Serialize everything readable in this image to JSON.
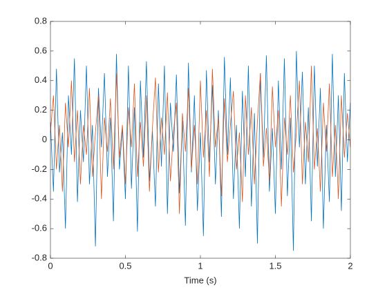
{
  "chart_data": {
    "type": "line",
    "xlabel": "Time (s)",
    "x": [
      0,
      0.02,
      0.04,
      0.06,
      0.08,
      0.1,
      0.12,
      0.14,
      0.16,
      0.18,
      0.2,
      0.22,
      0.24,
      0.26,
      0.28,
      0.3,
      0.32,
      0.34,
      0.36,
      0.38,
      0.4,
      0.42,
      0.44,
      0.46,
      0.48,
      0.5,
      0.52,
      0.54,
      0.56,
      0.58,
      0.6,
      0.62,
      0.64,
      0.66,
      0.68,
      0.7,
      0.72,
      0.74,
      0.76,
      0.78,
      0.8,
      0.82,
      0.84,
      0.86,
      0.88,
      0.9,
      0.92,
      0.94,
      0.96,
      0.98,
      1,
      1.02,
      1.04,
      1.06,
      1.08,
      1.1,
      1.12,
      1.14,
      1.16,
      1.18,
      1.2,
      1.22,
      1.24,
      1.26,
      1.28,
      1.3,
      1.32,
      1.34,
      1.36,
      1.38,
      1.4,
      1.42,
      1.44,
      1.46,
      1.48,
      1.5,
      1.52,
      1.54,
      1.56,
      1.58,
      1.6,
      1.62,
      1.64,
      1.66,
      1.68,
      1.7,
      1.72,
      1.74,
      1.76,
      1.78,
      1.8,
      1.82,
      1.84,
      1.86,
      1.88,
      1.9,
      1.92,
      1.94,
      1.96,
      1.98,
      2
    ],
    "series": [
      {
        "color": "#0072BD",
        "values": [
          0.12,
          -0.35,
          0.48,
          -0.22,
          0.05,
          -0.6,
          0.3,
          -0.1,
          0.55,
          -0.42,
          0.2,
          -0.15,
          0.5,
          -0.3,
          0.1,
          -0.72,
          0.35,
          -0.05,
          0.45,
          -0.25,
          0.15,
          -0.55,
          0.58,
          -0.2,
          0.08,
          -0.4,
          0.5,
          -0.33,
          0.22,
          -0.62,
          0.4,
          -0.12,
          0.53,
          -0.28,
          0.06,
          -0.45,
          0.38,
          -0.18,
          0.5,
          -0.5,
          0.25,
          -0.08,
          0.44,
          -0.36,
          0.13,
          -0.58,
          0.52,
          -0.22,
          0.3,
          -0.48,
          0.05,
          -0.65,
          0.47,
          -0.15,
          0.37,
          -0.3,
          0.2,
          -0.52,
          0.56,
          -0.1,
          0.42,
          -0.4,
          0.1,
          -0.6,
          0.33,
          -0.25,
          0.5,
          -0.45,
          0.18,
          -0.7,
          0.45,
          -0.12,
          0.57,
          -0.35,
          0.08,
          -0.5,
          0.4,
          -0.2,
          0.55,
          -0.38,
          0.15,
          -0.75,
          0.6,
          -0.05,
          0.46,
          -0.3,
          0.22,
          -0.55,
          0.5,
          -0.18,
          0.35,
          -0.6,
          0.1,
          -0.42,
          0.58,
          -0.25,
          0.3,
          -0.48,
          0.45,
          -0.15,
          0.25
        ]
      },
      {
        "color": "#D95319",
        "values": [
          0.05,
          0.3,
          -0.2,
          0.1,
          -0.35,
          0.25,
          -0.05,
          0.4,
          -0.15,
          0.2,
          -0.3,
          0.1,
          -0.1,
          0.35,
          -0.25,
          0.05,
          0.3,
          -0.4,
          0.15,
          -0.08,
          0.28,
          -0.2,
          0.45,
          -0.12,
          0.1,
          -0.3,
          0.22,
          -0.05,
          0.38,
          -0.25,
          0.12,
          -0.18,
          0.3,
          -0.35,
          0.08,
          0.42,
          -0.22,
          0.15,
          -0.1,
          0.32,
          -0.28,
          0.05,
          0.25,
          -0.5,
          0.18,
          -0.08,
          0.35,
          -0.2,
          0.1,
          -0.3,
          0.4,
          -0.12,
          0.2,
          -0.25,
          0.48,
          -0.05,
          0.15,
          -0.38,
          0.28,
          -0.15,
          0.1,
          0.33,
          -0.2,
          0.05,
          -0.42,
          0.3,
          -0.1,
          0.22,
          -0.3,
          0.12,
          0.45,
          -0.18,
          0.08,
          -0.28,
          0.36,
          -0.05,
          0.2,
          -0.45,
          0.15,
          -0.1,
          0.3,
          -0.22,
          0.05,
          0.4,
          -0.3,
          0.12,
          -0.15,
          0.5,
          -0.2,
          0.08,
          -0.35,
          0.25,
          -0.08,
          0.38,
          -0.25,
          0.1,
          -0.4,
          0.3,
          -0.12,
          0.18,
          -0.05
        ]
      }
    ],
    "xlim": [
      0,
      2
    ],
    "xticks": [
      0,
      0.5,
      1,
      1.5,
      2
    ],
    "ylim": [
      -0.8,
      0.8
    ],
    "yticks": [
      -0.8,
      -0.6,
      -0.4,
      -0.2,
      0,
      0.2,
      0.4,
      0.6,
      0.8
    ]
  }
}
